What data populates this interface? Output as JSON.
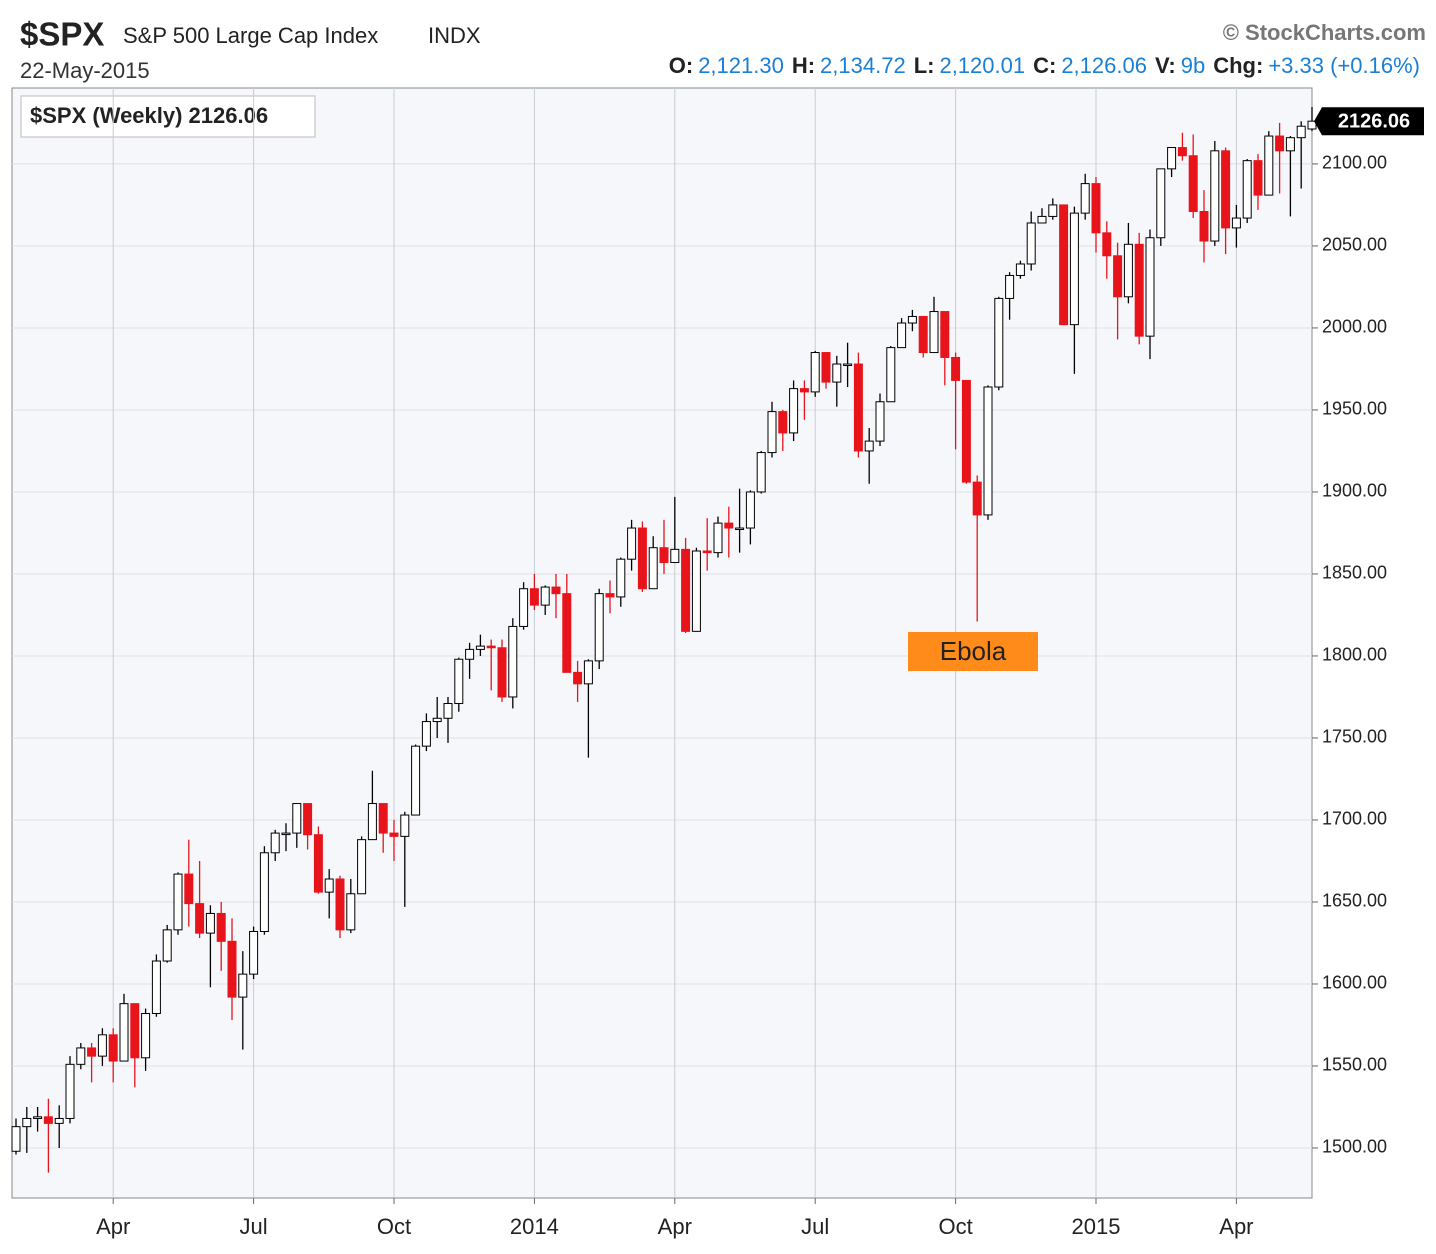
{
  "chart_data": {
    "type": "candlestick",
    "symbol": "$SPX",
    "name": "S&P 500 Large Cap Index",
    "exchange": "INDX",
    "date": "22-May-2015",
    "copyright": "© StockCharts.com",
    "quote": [
      {
        "label": "O:",
        "value": "2,121.30"
      },
      {
        "label": "H:",
        "value": "2,134.72"
      },
      {
        "label": "L:",
        "value": "2,120.01"
      },
      {
        "label": "C:",
        "value": "2,126.06"
      },
      {
        "label": "V:",
        "value": "9b"
      },
      {
        "label": "Chg:",
        "value": "+3.33 (+0.16%)"
      }
    ],
    "legend_label": "$SPX (Weekly) 2126.06",
    "annotation": "Ebola",
    "up_color": "#ffffff",
    "down_color": "#e8141b",
    "grid": true,
    "ylim": [
      1469.5,
      2146.3
    ],
    "yticks": [
      {
        "value": 1500,
        "label": "1500.00"
      },
      {
        "value": 1550,
        "label": "1550.00"
      },
      {
        "value": 1600,
        "label": "1600.00"
      },
      {
        "value": 1650,
        "label": "1650.00"
      },
      {
        "value": 1700,
        "label": "1700.00"
      },
      {
        "value": 1750,
        "label": "1750.00"
      },
      {
        "value": 1800,
        "label": "1800.00"
      },
      {
        "value": 1850,
        "label": "1850.00"
      },
      {
        "value": 1900,
        "label": "1900.00"
      },
      {
        "value": 1950,
        "label": "1950.00"
      },
      {
        "value": 2000,
        "label": "2000.00"
      },
      {
        "value": 2050,
        "label": "2050.00"
      },
      {
        "value": 2100,
        "label": "2100.00"
      }
    ],
    "categories": [
      null,
      null,
      null,
      null,
      null,
      null,
      null,
      null,
      null,
      "Apr",
      null,
      null,
      null,
      null,
      null,
      null,
      null,
      null,
      null,
      null,
      null,
      null,
      "Jul",
      null,
      null,
      null,
      null,
      null,
      null,
      null,
      null,
      null,
      null,
      null,
      null,
      "Oct",
      null,
      null,
      null,
      null,
      null,
      null,
      null,
      null,
      null,
      null,
      null,
      null,
      "2014",
      null,
      null,
      null,
      null,
      null,
      null,
      null,
      null,
      null,
      null,
      null,
      null,
      "Apr",
      null,
      null,
      null,
      null,
      null,
      null,
      null,
      null,
      null,
      null,
      null,
      null,
      "Jul",
      null,
      null,
      null,
      null,
      null,
      null,
      null,
      null,
      null,
      null,
      null,
      null,
      "Oct",
      null,
      null,
      null,
      null,
      null,
      null,
      null,
      null,
      null,
      null,
      null,
      null,
      "2015",
      null,
      null,
      null,
      null,
      null,
      null,
      null,
      null,
      null,
      null,
      null,
      null,
      "Apr",
      null,
      null,
      null,
      null,
      null,
      null,
      null
    ],
    "series": [
      {
        "name": "$SPX",
        "open": [
          1498,
          1513,
          1518,
          1519,
          1515,
          1518,
          1551,
          1561,
          1556,
          1569,
          1553,
          1588,
          1555,
          1582,
          1614,
          1633,
          1667,
          1649,
          1631,
          1643,
          1626,
          1592,
          1606,
          1632,
          1680,
          1692,
          1692,
          1710,
          1691,
          1656,
          1664,
          1633,
          1655,
          1688,
          1710,
          1692,
          1690,
          1703,
          1745,
          1760,
          1762,
          1771,
          1798,
          1804,
          1806,
          1805,
          1775,
          1818,
          1841,
          1831,
          1842,
          1838,
          1790,
          1783,
          1797,
          1838,
          1836,
          1859,
          1878,
          1841,
          1866,
          1857,
          1865,
          1815,
          1864,
          1863,
          1881,
          1878,
          1878,
          1900,
          1924,
          1949,
          1936,
          1963,
          1961,
          1985,
          1967,
          1978,
          1978,
          1925,
          1931,
          1955,
          1988,
          2003,
          2007,
          1985,
          2010,
          1982,
          1968,
          1906,
          1886,
          1964,
          2018,
          2032,
          2039,
          2064,
          2068,
          2075,
          2002,
          2070,
          2088,
          2058,
          2044,
          2019,
          2051,
          1995,
          2055,
          2097,
          2110,
          2105,
          2071,
          2053,
          2108,
          2061,
          2067,
          2102,
          2081,
          2117,
          2108,
          2116,
          2121.3
        ],
        "high": [
          1518,
          1525,
          1525,
          1530,
          1526,
          1556,
          1564,
          1564,
          1573,
          1573,
          1594,
          1588,
          1585,
          1618,
          1636,
          1668,
          1688,
          1675,
          1648,
          1650,
          1640,
          1620,
          1635,
          1684,
          1694,
          1698,
          1710,
          1710,
          1696,
          1670,
          1666,
          1664,
          1690,
          1730,
          1710,
          1700,
          1705,
          1746,
          1765,
          1775,
          1775,
          1799,
          1808,
          1813,
          1810,
          1810,
          1823,
          1845,
          1850,
          1843,
          1850,
          1850,
          1797,
          1798,
          1841,
          1846,
          1860,
          1883,
          1882,
          1873,
          1883,
          1897,
          1872,
          1866,
          1884,
          1885,
          1891,
          1902,
          1901,
          1925,
          1955,
          1950,
          1968,
          1968,
          1986,
          1985,
          1983,
          1991,
          1985,
          1939,
          1960,
          1989,
          2006,
          2011,
          2007,
          2019,
          2010,
          1985,
          1968,
          1910,
          1965,
          2019,
          2034,
          2041,
          2071,
          2073,
          2079,
          2075,
          2074,
          2094,
          2092,
          2065,
          2052,
          2064,
          2058,
          2060,
          2097,
          2110,
          2119,
          2118,
          2084,
          2114,
          2110,
          2075,
          2103,
          2106,
          2120,
          2125,
          2117,
          2126,
          2134.72
        ],
        "low": [
          1496,
          1497,
          1510,
          1485,
          1500,
          1515,
          1548,
          1540,
          1550,
          1540,
          1553,
          1537,
          1547,
          1580,
          1613,
          1630,
          1635,
          1628,
          1598,
          1608,
          1578,
          1560,
          1603,
          1630,
          1675,
          1681,
          1683,
          1682,
          1655,
          1640,
          1628,
          1631,
          1655,
          1688,
          1680,
          1675,
          1647,
          1703,
          1742,
          1750,
          1747,
          1766,
          1786,
          1800,
          1779,
          1772,
          1768,
          1816,
          1828,
          1825,
          1823,
          1790,
          1772,
          1738,
          1792,
          1826,
          1830,
          1852,
          1839,
          1841,
          1850,
          1857,
          1814,
          1816,
          1852,
          1860,
          1860,
          1863,
          1868,
          1899,
          1921,
          1925,
          1931,
          1944,
          1958,
          1963,
          1952,
          1964,
          1921,
          1905,
          1928,
          1955,
          1988,
          1998,
          1982,
          1985,
          1965,
          1926,
          1905,
          1821,
          1883,
          1962,
          2005,
          2030,
          2035,
          2065,
          2066,
          2002,
          1972,
          2066,
          2046,
          2030,
          1993,
          2015,
          1990,
          1981,
          2050,
          2092,
          2102,
          2067,
          2040,
          2050,
          2045,
          2049,
          2064,
          2072,
          2081,
          2082,
          2068,
          2085,
          2120.01
        ],
        "close": [
          1513,
          1518,
          1519,
          1515,
          1518,
          1551,
          1561,
          1556,
          1569,
          1553,
          1588,
          1555,
          1582,
          1614,
          1633,
          1667,
          1649,
          1631,
          1643,
          1626,
          1592,
          1606,
          1632,
          1680,
          1692,
          1692,
          1710,
          1691,
          1656,
          1664,
          1633,
          1655,
          1688,
          1710,
          1692,
          1690,
          1703,
          1745,
          1760,
          1762,
          1771,
          1798,
          1804,
          1806,
          1805,
          1775,
          1818,
          1841,
          1831,
          1842,
          1838,
          1790,
          1783,
          1797,
          1838,
          1836,
          1859,
          1878,
          1841,
          1866,
          1857,
          1865,
          1815,
          1864,
          1863,
          1881,
          1878,
          1878,
          1900,
          1924,
          1949,
          1936,
          1963,
          1961,
          1985,
          1967,
          1978,
          1978,
          1925,
          1931,
          1955,
          1988,
          2003,
          2007,
          1985,
          2010,
          1982,
          1968,
          1906,
          1886,
          1964,
          2018,
          2032,
          2039,
          2064,
          2068,
          2075,
          2002,
          2070,
          2088,
          2058,
          2044,
          2019,
          2051,
          1995,
          2055,
          2097,
          2110,
          2105,
          2071,
          2053,
          2108,
          2061,
          2067,
          2102,
          2081,
          2117,
          2108,
          2116,
          2123,
          2126.06
        ]
      }
    ]
  }
}
